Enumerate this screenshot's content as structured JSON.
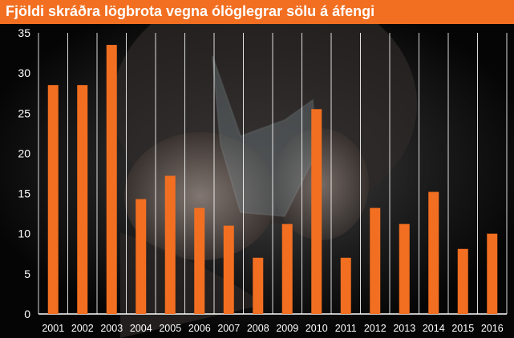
{
  "title": "Fjöldi skráðra lögbrota vegna ólöglegrar sölu á áfengi",
  "colors": {
    "title_bg": "#f26f21",
    "bar": "#f26f21",
    "background": "#000000",
    "text": "#ffffff",
    "grid": "#ffffff"
  },
  "chart_data": {
    "type": "bar",
    "title": "Fjöldi skráðra lögbrota vegna ólöglegrar sölu á áfengi",
    "xlabel": "",
    "ylabel": "",
    "categories": [
      "2001",
      "2002",
      "2003",
      "2004",
      "2005",
      "2006",
      "2007",
      "2008",
      "2009",
      "2010",
      "2011",
      "2012",
      "2013",
      "2014",
      "2015",
      "2016"
    ],
    "values": [
      28.5,
      28.5,
      33.5,
      14.3,
      17.2,
      13.2,
      11,
      7,
      11.2,
      25.5,
      7,
      13.2,
      11.2,
      15.2,
      8.1,
      10
    ],
    "ylim": [
      0,
      35
    ],
    "yticks": [
      0,
      5,
      10,
      15,
      20,
      25,
      30,
      35
    ],
    "grid": "vertical",
    "legend": "none"
  }
}
